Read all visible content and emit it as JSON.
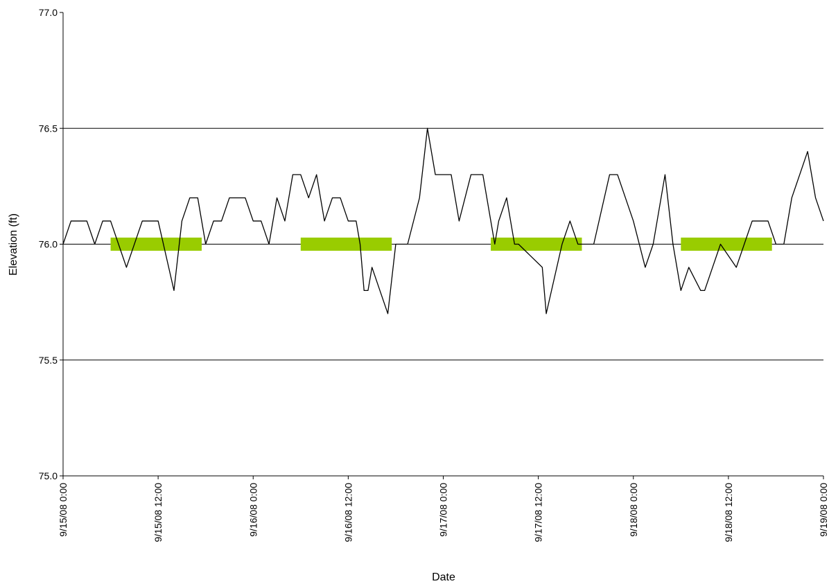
{
  "chart_data": {
    "type": "line",
    "xlabel": "Date",
    "ylabel": "Elevation (ft)",
    "xlim": [
      "9/15/08 0:00",
      "9/19/08 0:00"
    ],
    "xticks": [
      "9/15/08 0:00",
      "9/15/08 12:00",
      "9/16/08 0:00",
      "9/16/08 12:00",
      "9/17/08 0:00",
      "9/17/08 12:00",
      "9/18/08 0:00",
      "9/18/08 12:00",
      "9/19/08 0:00"
    ],
    "ylim": [
      75,
      77
    ],
    "yticks": [
      {
        "value": 75,
        "label": "75.0"
      },
      {
        "value": 75.5,
        "label": "75.5"
      },
      {
        "value": 76,
        "label": "76.0"
      },
      {
        "value": 76.5,
        "label": "76.5"
      },
      {
        "value": 77,
        "label": "77.0"
      }
    ],
    "grid": true,
    "series": [
      {
        "color": "#000000",
        "width": 1.3,
        "x": [
          "9/15/08 0:00",
          "9/15/08 1:00",
          "9/15/08 3:00",
          "9/15/08 4:00",
          "9/15/08 5:00",
          "9/15/08 6:00",
          "9/15/08 7:00",
          "9/15/08 8:00",
          "9/15/08 10:00",
          "9/15/08 12:00",
          "9/15/08 14:00",
          "9/15/08 15:00",
          "9/15/08 16:00",
          "9/15/08 17:00",
          "9/15/08 18:00",
          "9/15/08 19:00",
          "9/15/08 20:00",
          "9/15/08 21:00",
          "9/15/08 23:00",
          "9/16/08 0:00",
          "9/16/08 1:00",
          "9/16/08 2:00",
          "9/16/08 3:00",
          "9/16/08 4:00",
          "9/16/08 5:00",
          "9/16/08 6:00",
          "9/16/08 7:00",
          "9/16/08 8:00",
          "9/16/08 9:00",
          "9/16/08 10:00",
          "9/16/08 11:00",
          "9/16/08 12:00",
          "9/16/08 13:00",
          "9/16/08 13:30",
          "9/16/08 14:00",
          "9/16/08 14:30",
          "9/16/08 15:00",
          "9/16/08 16:00",
          "9/16/08 17:00",
          "9/16/08 18:00",
          "9/16/08 19:30",
          "9/16/08 21:00",
          "9/16/08 22:00",
          "9/16/08 23:00",
          "9/17/08 1:00",
          "9/17/08 2:00",
          "9/17/08 3:30",
          "9/17/08 5:00",
          "9/17/08 6:30",
          "9/17/08 7:00",
          "9/17/08 8:00",
          "9/17/08 9:00",
          "9/17/08 9:30",
          "9/17/08 12:30",
          "9/17/08 13:00",
          "9/17/08 15:00",
          "9/17/08 16:00",
          "9/17/08 17:00",
          "9/17/08 19:00",
          "9/17/08 21:00",
          "9/17/08 22:00",
          "9/17/08 23:00",
          "9/18/08 0:00",
          "9/18/08 1:30",
          "9/18/08 2:30",
          "9/18/08 3:00",
          "9/18/08 4:00",
          "9/18/08 5:00",
          "9/18/08 6:00",
          "9/18/08 7:00",
          "9/18/08 8:30",
          "9/18/08 9:00",
          "9/18/08 10:00",
          "9/18/08 11:00",
          "9/18/08 13:00",
          "9/18/08 14:00",
          "9/18/08 15:00",
          "9/18/08 17:00",
          "9/18/08 18:00",
          "9/18/08 19:00",
          "9/18/08 20:00",
          "9/18/08 21:00",
          "9/18/08 22:00",
          "9/18/08 23:00",
          "9/19/08 0:00"
        ],
        "values": [
          76.0,
          76.1,
          76.1,
          76.0,
          76.1,
          76.1,
          76.0,
          75.9,
          76.1,
          76.1,
          75.8,
          76.1,
          76.2,
          76.2,
          76.0,
          76.1,
          76.1,
          76.2,
          76.2,
          76.1,
          76.1,
          76.0,
          76.2,
          76.1,
          76.3,
          76.3,
          76.2,
          76.3,
          76.1,
          76.2,
          76.2,
          76.1,
          76.1,
          76.0,
          75.8,
          75.8,
          75.9,
          75.8,
          75.7,
          76.0,
          76.0,
          76.2,
          76.5,
          76.3,
          76.3,
          76.1,
          76.3,
          76.3,
          76.0,
          76.1,
          76.2,
          76.0,
          76.0,
          75.9,
          75.7,
          76.0,
          76.1,
          76.0,
          76.0,
          76.3,
          76.3,
          76.2,
          76.1,
          75.9,
          76.0,
          76.1,
          76.3,
          76.0,
          75.8,
          75.9,
          75.8,
          75.8,
          75.9,
          76.0,
          75.9,
          76.0,
          76.1,
          76.1,
          76.0,
          76.0,
          76.2,
          76.3,
          76.4,
          76.2,
          76.1
        ]
      },
      {
        "color": "#99cc00",
        "width": 19,
        "x": [
          "9/15/08 6:00",
          "9/15/08 17:30",
          "9/16/08 0:00",
          "9/16/08 6:00",
          "9/16/08 17:30",
          "9/17/08 0:00",
          "9/17/08 6:00",
          "9/17/08 17:30",
          "9/18/08 0:00",
          "9/18/08 6:00",
          "9/18/08 17:30"
        ],
        "values": [
          76,
          76,
          null,
          76,
          76,
          null,
          76,
          76,
          null,
          76,
          76
        ]
      }
    ]
  }
}
